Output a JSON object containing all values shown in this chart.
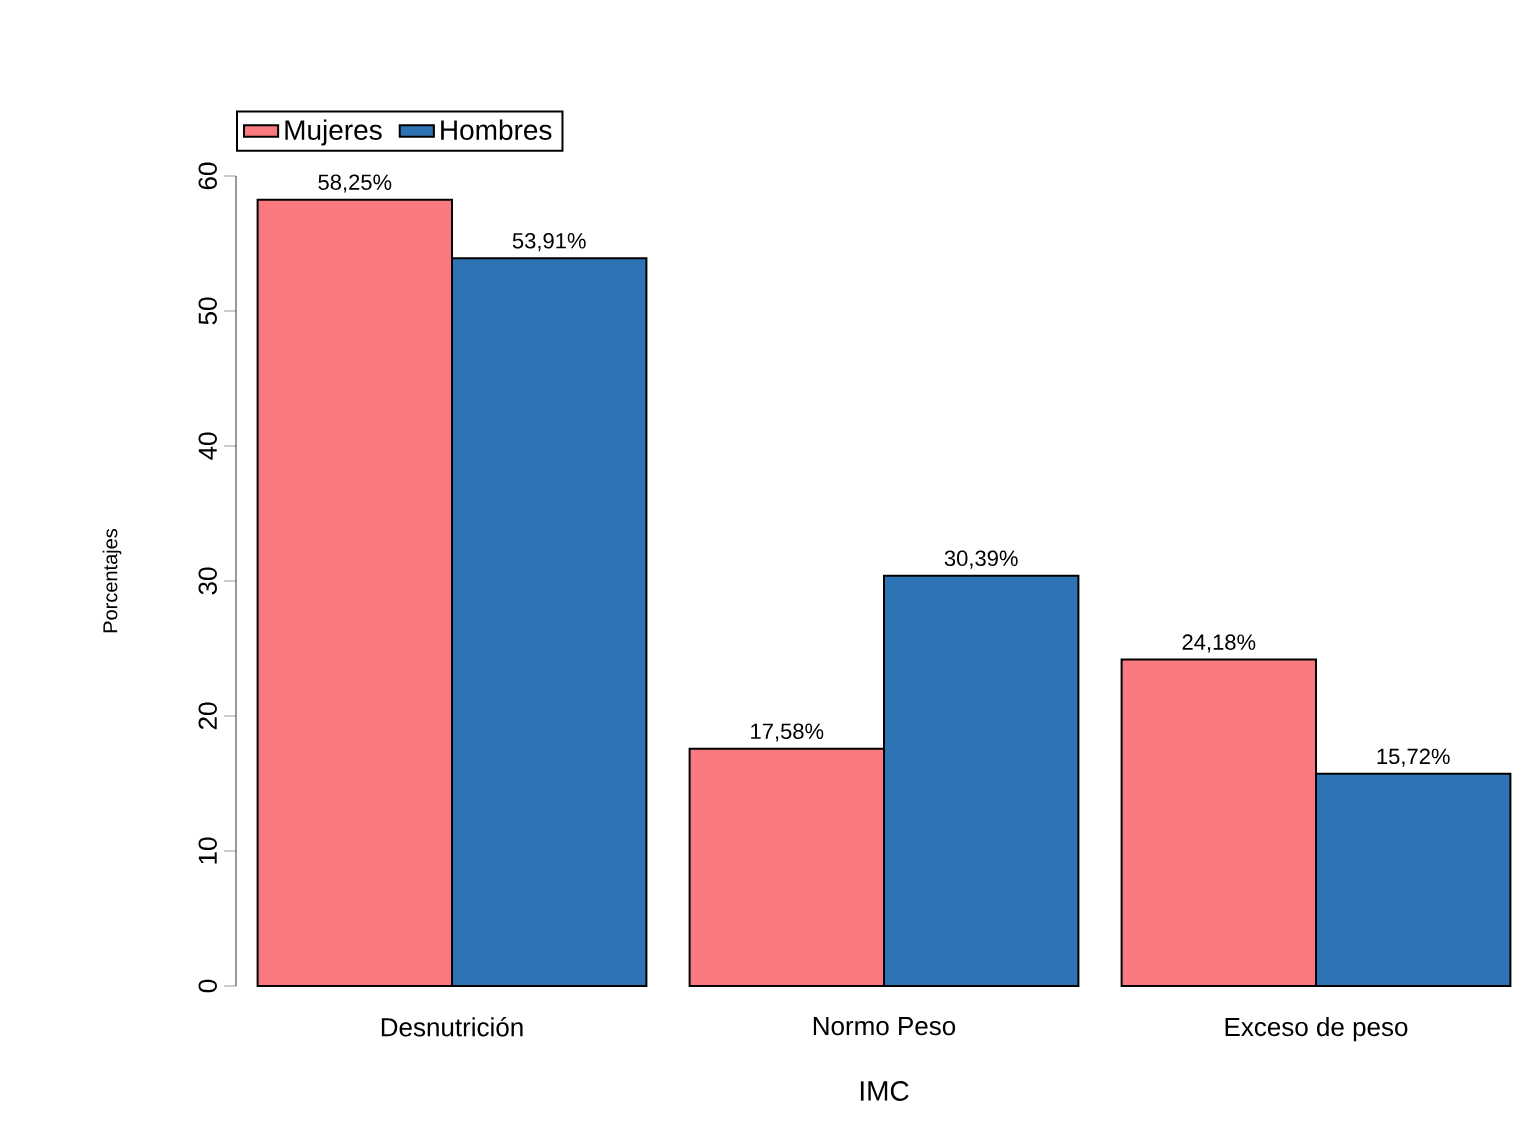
{
  "chart_data": {
    "type": "bar",
    "xlabel": "IMC",
    "ylabel": "Porcentajes",
    "categories": [
      "Desnutrición",
      "Normo Peso",
      "Exceso de peso"
    ],
    "series": [
      {
        "name": "Mujeres",
        "color": "#f87a7e",
        "values": [
          58.25,
          17.58,
          24.18
        ],
        "value_labels": [
          "58,25%",
          "17,58%",
          "24,18%"
        ]
      },
      {
        "name": "Hombres",
        "color": "#2e74b5",
        "values": [
          53.91,
          30.39,
          15.72
        ],
        "value_labels": [
          "53,91%",
          "30,39%",
          "15,72%"
        ]
      }
    ],
    "ylim": [
      0,
      60
    ],
    "yticks": [
      0,
      10,
      20,
      30,
      40,
      50,
      60
    ],
    "legend": "top left",
    "grid": false
  }
}
